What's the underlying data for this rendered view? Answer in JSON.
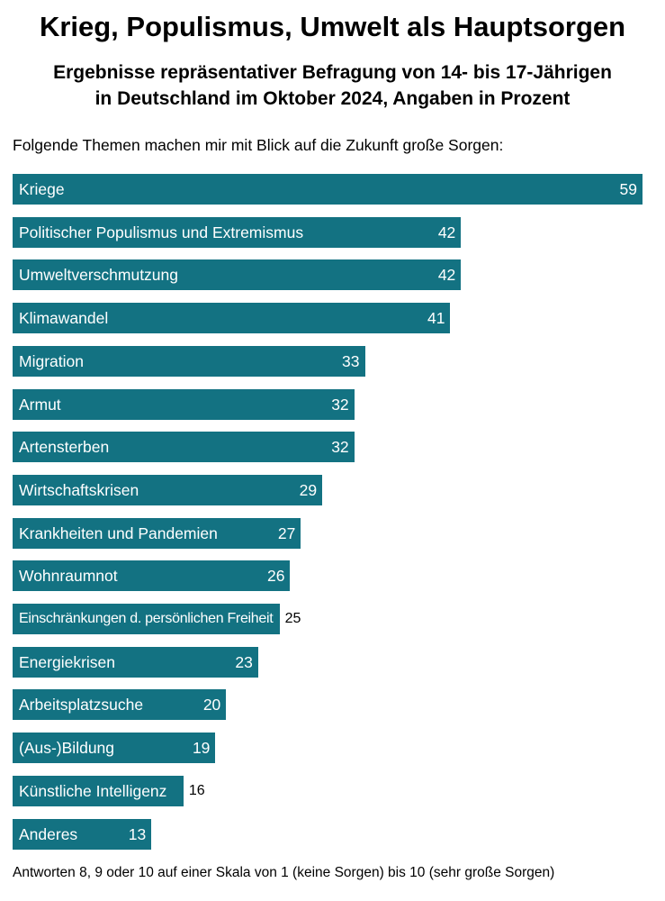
{
  "chart_data": {
    "type": "bar",
    "orientation": "horizontal",
    "title": "Krieg, Populismus, Umwelt als Hauptsorgen",
    "subtitle": [
      "Ergebnisse repräsentativer Befragung von 14- bis 17-Jährigen",
      "in Deutschland im Oktober 2024, Angaben in Prozent"
    ],
    "intro": "Folgende Themen machen mir mit Blick auf die Zukunft große Sorgen:",
    "footnote": "Antworten 8, 9 oder 10 auf einer Skala von 1 (keine Sorgen) bis 10 (sehr große Sorgen)",
    "categories": [
      "Kriege",
      "Politischer Populismus und Extremismus",
      "Umweltverschmutzung",
      "Klimawandel",
      "Migration",
      "Armut",
      "Artensterben",
      "Wirtschaftskrisen",
      "Krankheiten und Pandemien",
      "Wohnraumnot",
      "Einschränkungen d. persönlichen Freiheit",
      "Energiekrisen",
      "Arbeitsplatzsuche",
      "(Aus-)Bildung",
      "Künstliche Intelligenz",
      "Anderes"
    ],
    "values": [
      59,
      42,
      42,
      41,
      33,
      32,
      32,
      29,
      27,
      26,
      25,
      23,
      20,
      19,
      16,
      13
    ],
    "xlim": [
      0,
      59
    ],
    "grid": false,
    "bar_color": "#137282",
    "label_color": "#ffffff"
  }
}
